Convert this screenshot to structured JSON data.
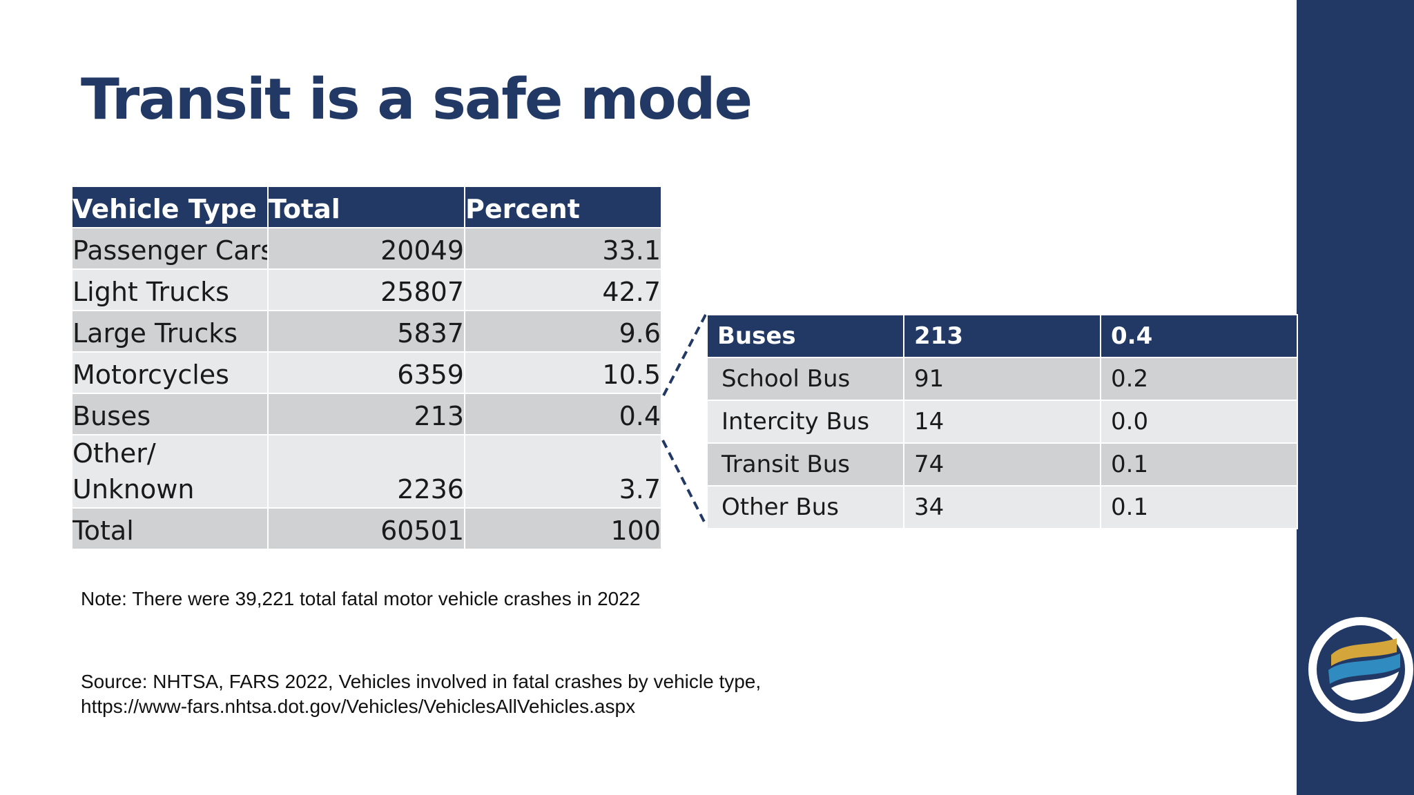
{
  "slide": {
    "title": "Transit is a safe mode"
  },
  "main_table": {
    "headers": [
      "Vehicle Type",
      "Total",
      "Percent"
    ],
    "rows": [
      {
        "type": "Passenger Cars",
        "total": "20049",
        "percent": "33.1"
      },
      {
        "type": "Light Trucks",
        "total": "25807",
        "percent": "42.7"
      },
      {
        "type": "Large Trucks",
        "total": "5837",
        "percent": "9.6"
      },
      {
        "type": "Motorcycles",
        "total": "6359",
        "percent": "10.5"
      },
      {
        "type": "Buses",
        "total": "213",
        "percent": "0.4"
      },
      {
        "type": "Other/ Unknown",
        "total": "2236",
        "percent": "3.7"
      },
      {
        "type": "Total",
        "total": "60501",
        "percent": "100"
      }
    ]
  },
  "bus_table": {
    "headers": [
      "Buses",
      "213",
      "0.4"
    ],
    "rows": [
      {
        "type": "School Bus",
        "total": "91",
        "percent": "0.2"
      },
      {
        "type": "Intercity Bus",
        "total": "14",
        "percent": "0.0"
      },
      {
        "type": "Transit Bus",
        "total": "74",
        "percent": "0.1"
      },
      {
        "type": "Other Bus",
        "total": "34",
        "percent": "0.1"
      }
    ]
  },
  "note": "Note: There were 39,221 total fatal motor vehicle crashes in 2022",
  "source": {
    "line1": "Source: NHTSA, FARS 2022, Vehicles involved in fatal crashes by vehicle type,",
    "line2": "https://www-fars.nhtsa.dot.gov/Vehicles/VehiclesAllVehicles.aspx"
  },
  "colors": {
    "brand_navy": "#213964",
    "row_dark": "#d0d1d3",
    "row_light": "#e8e9ea",
    "logo_gold": "#d4a53a",
    "logo_blue": "#2f8bc0"
  },
  "icons": {
    "logo": "agency-wave-logo"
  }
}
